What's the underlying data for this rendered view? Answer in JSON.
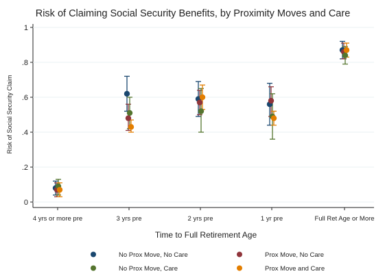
{
  "chart_data": {
    "type": "scatter",
    "title": "Risk of Claiming Social Security Benefits, by Proximity Moves and Care",
    "xlabel": "Time to Full Retirement Age",
    "ylabel": "Risk of Social Security Claim",
    "ylim": [
      0,
      1
    ],
    "yticks": [
      {
        "value": 0,
        "label": "0"
      },
      {
        "value": 0.2,
        "label": ".2"
      },
      {
        "value": 0.4,
        "label": ".4"
      },
      {
        "value": 0.6,
        "label": ".6"
      },
      {
        "value": 0.8,
        "label": ".8"
      },
      {
        "value": 1,
        "label": "1"
      }
    ],
    "grid": "horizontal",
    "legend_position": "bottom",
    "categories": [
      "4 yrs or more pre",
      "3 yrs pre",
      "2 yrs pre",
      "1 yr pre",
      "Full Ret Age or More"
    ],
    "series": [
      {
        "name": "No Prox Move, No Care",
        "color": "#1a476f",
        "values": [
          0.08,
          0.62,
          0.59,
          0.56,
          0.87
        ],
        "ci_low": [
          0.04,
          0.52,
          0.49,
          0.44,
          0.82
        ],
        "ci_high": [
          0.12,
          0.72,
          0.69,
          0.68,
          0.92
        ]
      },
      {
        "name": "Prox Move, No Care",
        "color": "#90353b",
        "values": [
          0.07,
          0.48,
          0.57,
          0.58,
          0.86
        ],
        "ci_low": [
          0.03,
          0.41,
          0.5,
          0.49,
          0.82
        ],
        "ci_high": [
          0.11,
          0.56,
          0.64,
          0.66,
          0.91
        ]
      },
      {
        "name": "No Prox Move, Care",
        "color": "#55752f",
        "values": [
          0.09,
          0.51,
          0.52,
          0.49,
          0.84
        ],
        "ci_low": [
          0.04,
          0.42,
          0.4,
          0.36,
          0.79
        ],
        "ci_high": [
          0.13,
          0.6,
          0.65,
          0.62,
          0.89
        ]
      },
      {
        "name": "Prox Move and Care",
        "color": "#e37e00",
        "values": [
          0.07,
          0.43,
          0.6,
          0.48,
          0.87
        ],
        "ci_low": [
          0.03,
          0.4,
          0.53,
          0.44,
          0.83
        ],
        "ci_high": [
          0.11,
          0.47,
          0.67,
          0.52,
          0.91
        ]
      }
    ]
  }
}
